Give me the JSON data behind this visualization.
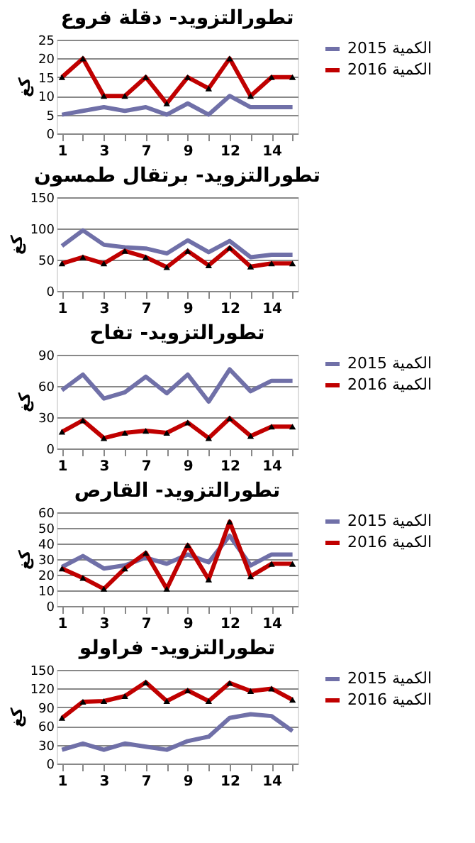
{
  "chart_data": [
    {
      "type": "line",
      "title": "تطورالتزويد- دقلة فروع",
      "ylabel": "كغ",
      "categories": [
        "1",
        null,
        "3",
        null,
        "7",
        null,
        "9",
        null,
        "12",
        null,
        "14",
        null
      ],
      "ylim": [
        0,
        25
      ],
      "yticks": [
        0,
        5,
        10,
        15,
        20,
        25
      ],
      "grid": "y",
      "legend": "right",
      "series": [
        {
          "name": "2015 الكمية",
          "color": "#7070a8",
          "marker": "none",
          "values": [
            5,
            6,
            7,
            6,
            7,
            5,
            8,
            5,
            10,
            7,
            7,
            7
          ]
        },
        {
          "name": "2016 الكمية",
          "color": "#c00000",
          "marker": "triangle",
          "values": [
            15,
            20,
            10,
            10,
            15,
            8,
            15,
            12,
            20,
            10,
            15,
            15
          ]
        }
      ]
    },
    {
      "type": "line",
      "title": "تطورالتزويد- برتقال طمسون",
      "ylabel": "كغ",
      "categories": [
        "1",
        null,
        "3",
        null,
        "7",
        null,
        "9",
        null,
        "12",
        null,
        "14",
        null
      ],
      "ylim": [
        0,
        150
      ],
      "yticks": [
        0,
        50,
        100,
        150
      ],
      "grid": "y",
      "legend": false,
      "series": [
        {
          "color": "#7070a8",
          "marker": "none",
          "values": [
            72,
            97,
            74,
            70,
            68,
            60,
            81,
            62,
            80,
            54,
            58,
            58
          ]
        },
        {
          "color": "#c00000",
          "marker": "triangle",
          "values": [
            44,
            54,
            44,
            64,
            54,
            38,
            64,
            41,
            69,
            39,
            44,
            44
          ]
        }
      ]
    },
    {
      "type": "line",
      "title": "تطورالتزويد- تفاح",
      "ylabel": "كغ",
      "categories": [
        "1",
        null,
        "3",
        null,
        "7",
        null,
        "9",
        null,
        "12",
        null,
        "14",
        null
      ],
      "ylim": [
        0,
        90
      ],
      "yticks": [
        0,
        30,
        60,
        90
      ],
      "grid": "y",
      "legend": "right",
      "series": [
        {
          "name": "2015 الكمية",
          "color": "#7070a8",
          "marker": "none",
          "values": [
            56,
            71,
            48,
            54,
            69,
            53,
            71,
            45,
            76,
            55,
            65,
            65
          ]
        },
        {
          "name": "2016 الكمية",
          "color": "#c00000",
          "marker": "triangle",
          "values": [
            16,
            27,
            10,
            15,
            17,
            15,
            25,
            10,
            29,
            12,
            21,
            21
          ]
        }
      ]
    },
    {
      "type": "line",
      "title": "تطورالتزويد- القارص",
      "ylabel": "كغ",
      "categories": [
        "1",
        null,
        "3",
        null,
        "7",
        null,
        "9",
        null,
        "12",
        null,
        "14",
        null
      ],
      "ylim": [
        0,
        60
      ],
      "yticks": [
        0,
        10,
        20,
        30,
        40,
        50,
        60
      ],
      "grid": "y",
      "legend": "right",
      "series": [
        {
          "name": "2015 الكمية",
          "color": "#7070a8",
          "marker": "none",
          "values": [
            25,
            32,
            24,
            26,
            31,
            27,
            33,
            28,
            45,
            26,
            33,
            33
          ]
        },
        {
          "name": "2016 الكمية",
          "color": "#c00000",
          "marker": "triangle",
          "values": [
            24,
            18,
            11,
            24,
            34,
            11,
            39,
            17,
            54,
            19,
            27,
            27
          ]
        }
      ]
    },
    {
      "type": "line",
      "title": "تطورالتزويد- فراولو",
      "ylabel": "كغ",
      "categories": [
        "1",
        null,
        "3",
        null,
        "7",
        null,
        "9",
        null,
        "12",
        null,
        "14",
        null
      ],
      "ylim": [
        0,
        150
      ],
      "yticks": [
        0,
        30,
        60,
        90,
        120,
        150
      ],
      "grid": "y",
      "legend": "right",
      "series": [
        {
          "name": "2015 الكمية",
          "color": "#7070a8",
          "marker": "none",
          "values": [
            22,
            32,
            22,
            32,
            27,
            22,
            36,
            43,
            73,
            79,
            76,
            52
          ]
        },
        {
          "name": "2016 الكمية",
          "color": "#c00000",
          "marker": "triangle",
          "values": [
            73,
            99,
            100,
            108,
            130,
            100,
            117,
            100,
            129,
            116,
            120,
            102
          ]
        }
      ]
    }
  ]
}
